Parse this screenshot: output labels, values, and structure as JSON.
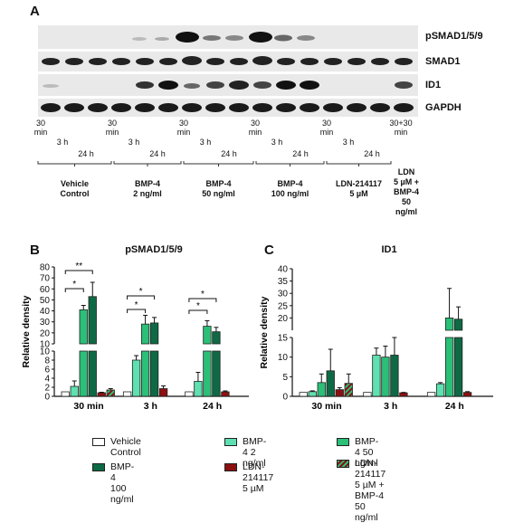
{
  "panels": {
    "a": "A",
    "b": "B",
    "c": "C"
  },
  "blot": {
    "rows": [
      "pSMAD1/5/9",
      "SMAD1",
      "ID1",
      "GAPDH"
    ],
    "time_labels": [
      {
        "text": "30\nmin"
      },
      {
        "text": "3 h"
      },
      {
        "text": "24 h"
      },
      {
        "text": "30\nmin"
      },
      {
        "text": "3 h"
      },
      {
        "text": "24 h"
      },
      {
        "text": "30\nmin"
      },
      {
        "text": "3 h"
      },
      {
        "text": "24 h"
      },
      {
        "text": "30\nmin"
      },
      {
        "text": "3 h"
      },
      {
        "text": "24 h"
      },
      {
        "text": "30\nmin"
      },
      {
        "text": "3 h"
      },
      {
        "text": "24 h"
      },
      {
        "text": "30+30\nmin"
      }
    ],
    "groups": [
      {
        "label": "Vehicle\nControl"
      },
      {
        "label": "BMP-4\n2 ng/ml"
      },
      {
        "label": "BMP-4\n50 ng/ml"
      },
      {
        "label": "BMP-4\n100 ng/ml"
      },
      {
        "label": "LDN-214117\n5 µM"
      },
      {
        "label": "LDN\n5 µM +\nBMP-4\n50 ng/ml"
      }
    ]
  },
  "legend": [
    {
      "label": "Vehicle Control",
      "color": "#ffffff"
    },
    {
      "label": "BMP-4 2 ng/ml",
      "color": "#5fe0b0"
    },
    {
      "label": "BMP-4 50 ng/ml",
      "color": "#2bbf78"
    },
    {
      "label": "BMP-4 100 ng/ml",
      "color": "#0e6a44"
    },
    {
      "label": "LDN-214117 5 µM",
      "color": "#8b1010"
    },
    {
      "label": "LDN-214117 5 µM +\nBMP-4 50 ng/ml",
      "color": "hatch"
    }
  ],
  "chart_data": [
    {
      "type": "bar",
      "title": "pSMAD1/5/9",
      "ylabel": "Relative density",
      "categories": [
        "30 min",
        "3 h",
        "24 h"
      ],
      "y_axis_broken": true,
      "y_lower": {
        "range": [
          0,
          10
        ],
        "ticks": [
          0,
          2,
          4,
          6,
          8,
          10
        ]
      },
      "y_upper": {
        "range": [
          10,
          80
        ],
        "ticks": [
          10,
          20,
          30,
          40,
          50,
          60,
          70,
          80
        ]
      },
      "series": [
        {
          "name": "Vehicle Control",
          "values": [
            1,
            1,
            1
          ],
          "errors": [
            0,
            0,
            0
          ]
        },
        {
          "name": "BMP-4 2 ng/ml",
          "values": [
            2.2,
            8,
            3.3
          ],
          "errors": [
            1.2,
            1,
            2
          ]
        },
        {
          "name": "BMP-4 50 ng/ml",
          "values": [
            41,
            28,
            26
          ],
          "errors": [
            4,
            8,
            5
          ]
        },
        {
          "name": "BMP-4 100 ng/ml",
          "values": [
            53,
            29,
            21
          ],
          "errors": [
            13,
            5,
            4
          ]
        },
        {
          "name": "LDN-214117 5 µM",
          "values": [
            0.8,
            1.7,
            1
          ],
          "errors": [
            0.1,
            0.6,
            0.2
          ]
        },
        {
          "name": "LDN-214117 5 µM + BMP-4 50 ng/ml",
          "values": [
            1.4,
            null,
            null
          ],
          "errors": [
            0.3,
            0,
            0
          ]
        }
      ],
      "significance": [
        {
          "category": "30 min",
          "label": "**"
        },
        {
          "category": "30 min",
          "label": "*"
        },
        {
          "category": "3 h",
          "label": "*"
        },
        {
          "category": "3 h",
          "label": "*"
        },
        {
          "category": "24 h",
          "label": "*"
        },
        {
          "category": "24 h",
          "label": "*"
        }
      ]
    },
    {
      "type": "bar",
      "title": "ID1",
      "ylabel": "Relative density",
      "categories": [
        "30 min",
        "3 h",
        "24 h"
      ],
      "y_axis_broken": true,
      "y_lower": {
        "range": [
          0,
          15
        ],
        "ticks": [
          0,
          5,
          10,
          15
        ]
      },
      "y_upper": {
        "range": [
          15,
          40
        ],
        "ticks": [
          20,
          25,
          30,
          35,
          40
        ]
      },
      "series": [
        {
          "name": "Vehicle Control",
          "values": [
            1,
            1,
            1
          ],
          "errors": [
            0,
            0,
            0
          ]
        },
        {
          "name": "BMP-4 2 ng/ml",
          "values": [
            1.2,
            10.5,
            3.2
          ],
          "errors": [
            0.2,
            1.8,
            0.3
          ]
        },
        {
          "name": "BMP-4 50 ng/ml",
          "values": [
            3.5,
            10,
            20
          ],
          "errors": [
            2.2,
            2.8,
            12
          ]
        },
        {
          "name": "BMP-4 100 ng/ml",
          "values": [
            6.5,
            10.5,
            19.5
          ],
          "errors": [
            5.5,
            4.5,
            5
          ]
        },
        {
          "name": "LDN-214117 5 µM",
          "values": [
            1.7,
            0.9,
            1
          ],
          "errors": [
            0.5,
            0.1,
            0.2
          ]
        },
        {
          "name": "LDN-214117 5 µM + BMP-4 50 ng/ml",
          "values": [
            3.3,
            null,
            null
          ],
          "errors": [
            2.4,
            0,
            0
          ]
        }
      ]
    }
  ]
}
